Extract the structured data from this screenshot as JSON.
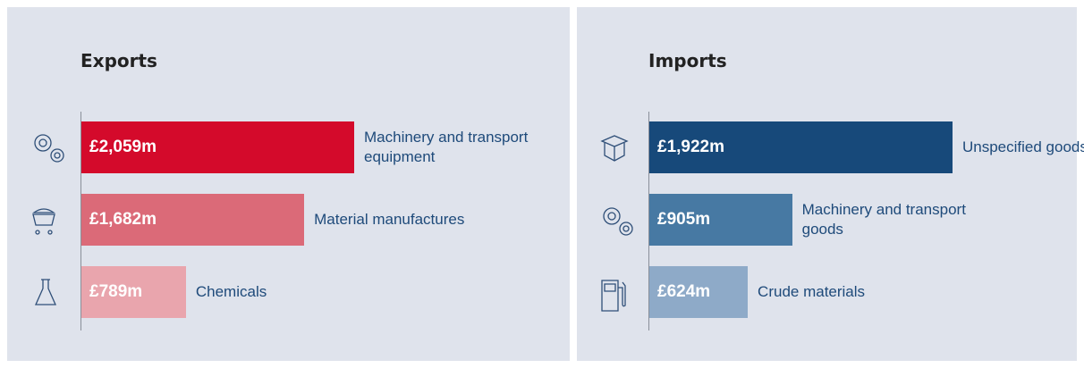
{
  "chart_data": [
    {
      "type": "bar",
      "orientation": "horizontal",
      "title": "Exports",
      "categories": [
        "Machinery and transport equipment",
        "Material manufactures",
        "Chemicals"
      ],
      "values": [
        2059,
        1682,
        789
      ],
      "value_labels": [
        "£2,059m",
        "£1,682m",
        "£789m"
      ],
      "colors": [
        "#d40a2b",
        "#db6a78",
        "#e9a5ad"
      ]
    },
    {
      "type": "bar",
      "orientation": "horizontal",
      "title": "Imports",
      "categories": [
        "Unspecified goods",
        "Machinery and transport goods",
        "Crude materials"
      ],
      "values": [
        1922,
        905,
        624
      ],
      "value_labels": [
        "£1,922m",
        "£905m",
        "£624m"
      ],
      "colors": [
        "#17497a",
        "#4779a3",
        "#8eaac8"
      ]
    }
  ]
}
